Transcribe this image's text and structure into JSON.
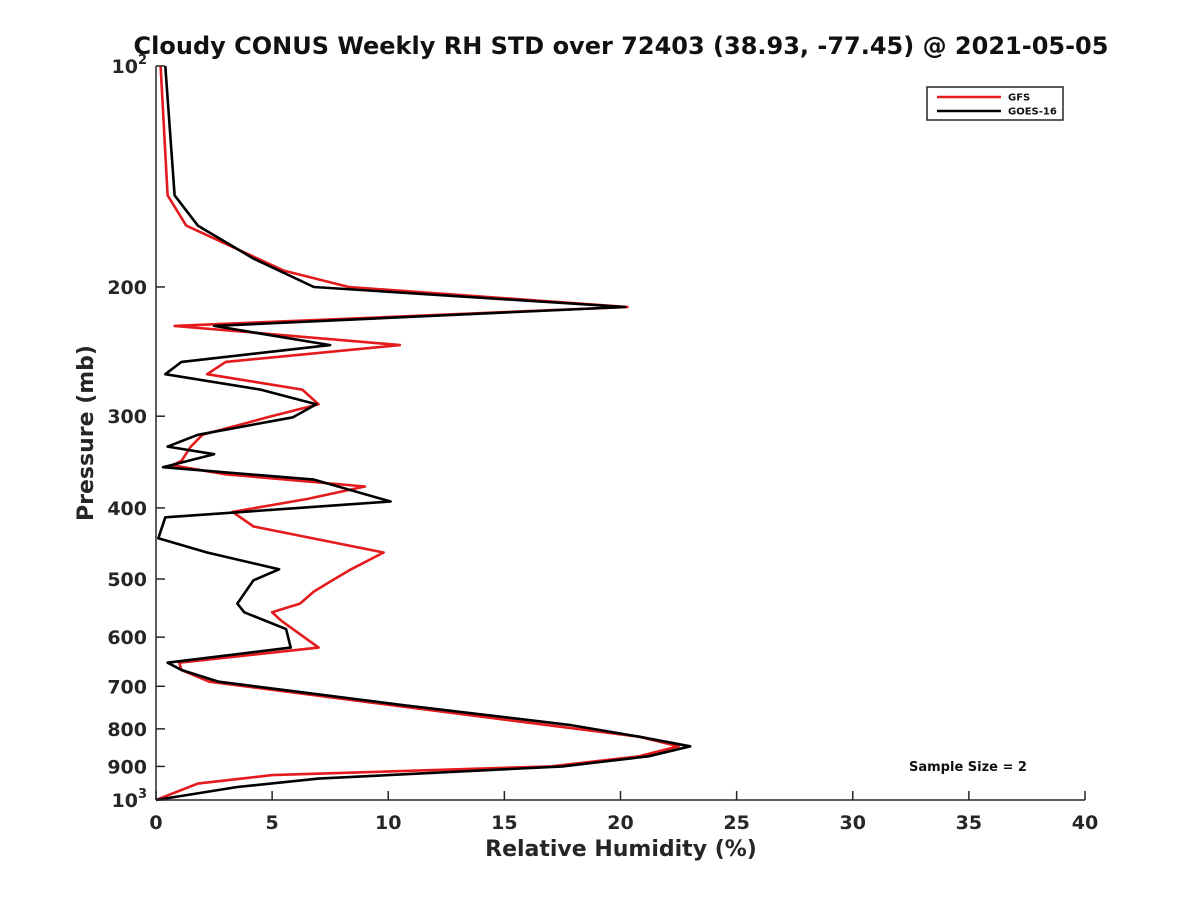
{
  "chart_data": {
    "type": "line",
    "title": "Cloudy CONUS Weekly RH STD over 72403 (38.93, -77.45) @ 2021-05-05",
    "xlabel": "Relative Humidity (%)",
    "ylabel": "Pressure (mb)",
    "xlim": [
      0,
      40
    ],
    "ylim": [
      100,
      1000
    ],
    "yscale": "log",
    "y_reversed": true,
    "grid": false,
    "legend_position": "top-right",
    "x_ticks": [
      "0",
      "5",
      "10",
      "15",
      "20",
      "25",
      "30",
      "35",
      "40"
    ],
    "x_tick_values": [
      0,
      5,
      10,
      15,
      20,
      25,
      30,
      35,
      40
    ],
    "y_ticks": [
      {
        "value": 100,
        "base": "10",
        "exp": "2"
      },
      {
        "value": 200,
        "base": "200",
        "exp": ""
      },
      {
        "value": 300,
        "base": "300",
        "exp": ""
      },
      {
        "value": 400,
        "base": "400",
        "exp": ""
      },
      {
        "value": 500,
        "base": "500",
        "exp": ""
      },
      {
        "value": 600,
        "base": "600",
        "exp": ""
      },
      {
        "value": 700,
        "base": "700",
        "exp": ""
      },
      {
        "value": 800,
        "base": "800",
        "exp": ""
      },
      {
        "value": 900,
        "base": "900",
        "exp": ""
      },
      {
        "value": 1000,
        "base": "10",
        "exp": "3"
      }
    ],
    "annotation": "Sample Size = 2",
    "series": [
      {
        "name": "GFS",
        "color": "#e41a1c",
        "points": [
          {
            "p": 100,
            "rh": 0.2
          },
          {
            "p": 150,
            "rh": 0.5
          },
          {
            "p": 165,
            "rh": 1.3
          },
          {
            "p": 190,
            "rh": 5.5
          },
          {
            "p": 200,
            "rh": 8.3
          },
          {
            "p": 213,
            "rh": 20.3
          },
          {
            "p": 226,
            "rh": 0.8
          },
          {
            "p": 240,
            "rh": 10.5
          },
          {
            "p": 253,
            "rh": 3.0
          },
          {
            "p": 263,
            "rh": 2.2
          },
          {
            "p": 276,
            "rh": 6.3
          },
          {
            "p": 289,
            "rh": 7.0
          },
          {
            "p": 301,
            "rh": 4.8
          },
          {
            "p": 318,
            "rh": 2.0
          },
          {
            "p": 330,
            "rh": 1.5
          },
          {
            "p": 345,
            "rh": 1.1
          },
          {
            "p": 350,
            "rh": 0.7
          },
          {
            "p": 360,
            "rh": 3.0
          },
          {
            "p": 374,
            "rh": 9.0
          },
          {
            "p": 389,
            "rh": 6.5
          },
          {
            "p": 405,
            "rh": 3.3
          },
          {
            "p": 424,
            "rh": 4.2
          },
          {
            "p": 460,
            "rh": 9.8
          },
          {
            "p": 485,
            "rh": 8.4
          },
          {
            "p": 502,
            "rh": 7.6
          },
          {
            "p": 520,
            "rh": 6.8
          },
          {
            "p": 540,
            "rh": 6.2
          },
          {
            "p": 555,
            "rh": 5.0
          },
          {
            "p": 570,
            "rh": 5.4
          },
          {
            "p": 620,
            "rh": 7.0
          },
          {
            "p": 650,
            "rh": 1.0
          },
          {
            "p": 665,
            "rh": 1.1
          },
          {
            "p": 690,
            "rh": 2.3
          },
          {
            "p": 743,
            "rh": 10.2
          },
          {
            "p": 790,
            "rh": 16.8
          },
          {
            "p": 820,
            "rh": 20.8
          },
          {
            "p": 845,
            "rh": 22.5
          },
          {
            "p": 872,
            "rh": 20.8
          },
          {
            "p": 900,
            "rh": 17.0
          },
          {
            "p": 925,
            "rh": 5.0
          },
          {
            "p": 950,
            "rh": 1.8
          },
          {
            "p": 1000,
            "rh": 0.0
          }
        ]
      },
      {
        "name": "GOES-16",
        "color": "#000000",
        "points": [
          {
            "p": 100,
            "rh": 0.4
          },
          {
            "p": 150,
            "rh": 0.8
          },
          {
            "p": 165,
            "rh": 1.8
          },
          {
            "p": 183,
            "rh": 4.2
          },
          {
            "p": 200,
            "rh": 6.8
          },
          {
            "p": 213,
            "rh": 20.2
          },
          {
            "p": 226,
            "rh": 2.5
          },
          {
            "p": 240,
            "rh": 7.5
          },
          {
            "p": 253,
            "rh": 1.1
          },
          {
            "p": 263,
            "rh": 0.4
          },
          {
            "p": 276,
            "rh": 4.5
          },
          {
            "p": 289,
            "rh": 6.9
          },
          {
            "p": 301,
            "rh": 5.9
          },
          {
            "p": 318,
            "rh": 1.8
          },
          {
            "p": 330,
            "rh": 0.5
          },
          {
            "p": 338,
            "rh": 2.5
          },
          {
            "p": 352,
            "rh": 0.3
          },
          {
            "p": 366,
            "rh": 6.8
          },
          {
            "p": 392,
            "rh": 10.1
          },
          {
            "p": 412,
            "rh": 0.4
          },
          {
            "p": 440,
            "rh": 0.1
          },
          {
            "p": 460,
            "rh": 2.2
          },
          {
            "p": 485,
            "rh": 5.3
          },
          {
            "p": 502,
            "rh": 4.2
          },
          {
            "p": 540,
            "rh": 3.5
          },
          {
            "p": 555,
            "rh": 3.8
          },
          {
            "p": 585,
            "rh": 5.6
          },
          {
            "p": 620,
            "rh": 5.8
          },
          {
            "p": 650,
            "rh": 0.5
          },
          {
            "p": 665,
            "rh": 1.1
          },
          {
            "p": 690,
            "rh": 2.7
          },
          {
            "p": 743,
            "rh": 10.7
          },
          {
            "p": 790,
            "rh": 17.8
          },
          {
            "p": 820,
            "rh": 20.8
          },
          {
            "p": 845,
            "rh": 23.0
          },
          {
            "p": 872,
            "rh": 21.2
          },
          {
            "p": 900,
            "rh": 17.5
          },
          {
            "p": 935,
            "rh": 7.0
          },
          {
            "p": 960,
            "rh": 3.5
          },
          {
            "p": 1000,
            "rh": 0.0
          }
        ]
      }
    ]
  }
}
